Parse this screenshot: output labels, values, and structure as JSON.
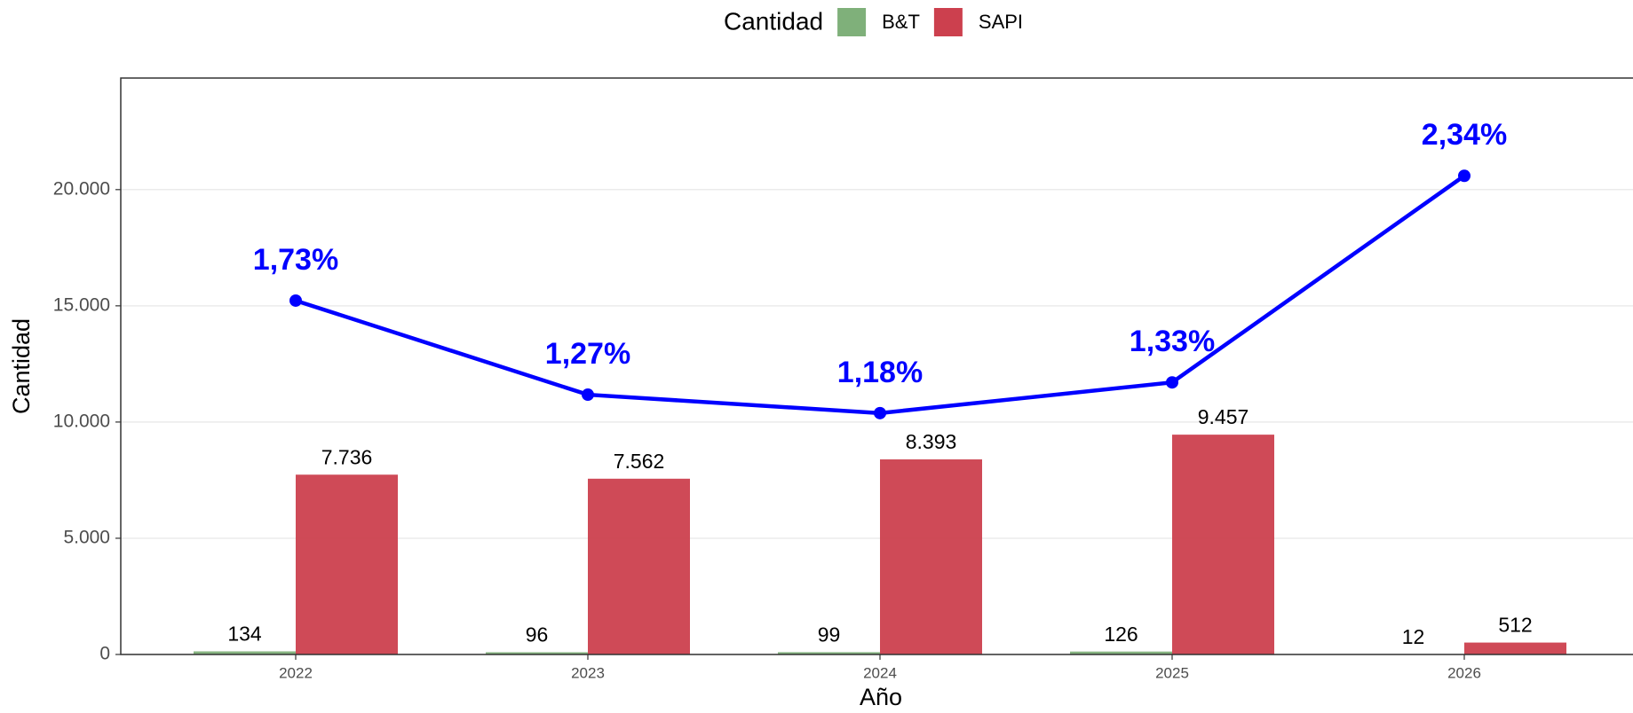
{
  "chart_data": {
    "type": "bar",
    "legend_title": "Cantidad",
    "x_label": "Año",
    "y_label": "Cantidad",
    "categories": [
      "2022",
      "2023",
      "2024",
      "2025",
      "2026"
    ],
    "series": [
      {
        "name": "B&T",
        "color": "#7fb07a",
        "values": [
          134,
          96,
          99,
          126,
          12
        ],
        "value_labels": [
          "134",
          "96",
          "99",
          "126",
          "12"
        ]
      },
      {
        "name": "SAPI",
        "color": "#cc404e",
        "values": [
          7736,
          7562,
          8393,
          9457,
          512
        ],
        "value_labels": [
          "7.736",
          "7.562",
          "8.393",
          "9.457",
          "512"
        ]
      },
      {
        "type": "line",
        "axis": "y2",
        "color": "#0000ff",
        "values": [
          1.73,
          1.27,
          1.18,
          1.33,
          2.34
        ],
        "value_labels": [
          "1,73%",
          "1,27%",
          "1,18%",
          "1,33%",
          "2,34%"
        ]
      }
    ],
    "ylim": [
      0,
      24800
    ],
    "yticks": [
      0,
      {
        "value": 5000,
        "label": "5.000"
      },
      {
        "value": 10000,
        "label": "10.000"
      },
      {
        "value": 15000,
        "label": "15.000"
      },
      {
        "value": 20000,
        "label": "20.000"
      }
    ],
    "y2lim": [
      0,
      2.818
    ],
    "grid": true,
    "legend": "top"
  }
}
